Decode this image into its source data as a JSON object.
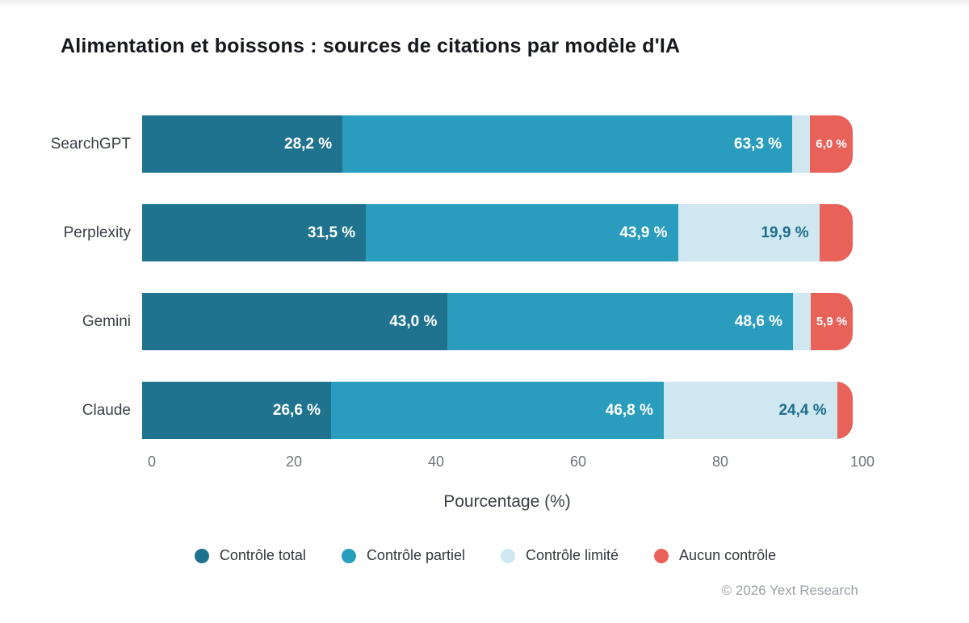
{
  "page": {
    "title": "Alimentation et boissons : sources de citations par modèle d'IA",
    "footer": "© 2026 Yext Research"
  },
  "chart_data": {
    "type": "bar",
    "orientation": "horizontal",
    "stacked": true,
    "grid": false,
    "title": "Alimentation et boissons : sources de citations par modèle d'IA",
    "categories": [
      "SearchGPT",
      "Perplexity",
      "Gemini",
      "Claude"
    ],
    "series": [
      {
        "name": "Contrôle total",
        "color": "#20738f",
        "values": [
          28.2,
          31.5,
          43.0,
          26.6
        ],
        "display_labels": [
          "28,2 %",
          "31,5 %",
          "43,0 %",
          "26,6 %"
        ]
      },
      {
        "name": "Contrôle partiel",
        "color": "#2a9dbe",
        "values": [
          63.3,
          43.9,
          48.6,
          46.8
        ],
        "display_labels": [
          "63,3 %",
          "43,9 %",
          "48,6 %",
          "46,8 %"
        ]
      },
      {
        "name": "Contrôle limité",
        "color": "#cfe7f0",
        "values": [
          2.5,
          19.9,
          2.5,
          24.4
        ],
        "display_labels": [
          "",
          "19,9 %",
          "",
          "24,4 %"
        ]
      },
      {
        "name": "Aucun contrôle",
        "color": "#e8625a",
        "values": [
          6.0,
          4.7,
          5.9,
          2.2
        ],
        "display_labels": [
          "6,0 %",
          "",
          "5,9 %",
          ""
        ]
      }
    ],
    "xlabel": "Pourcentage (%)",
    "x_ticks": [
      "0",
      "20",
      "40",
      "60",
      "80",
      "100"
    ],
    "xlim": [
      0,
      100
    ],
    "legend_position": "bottom"
  }
}
